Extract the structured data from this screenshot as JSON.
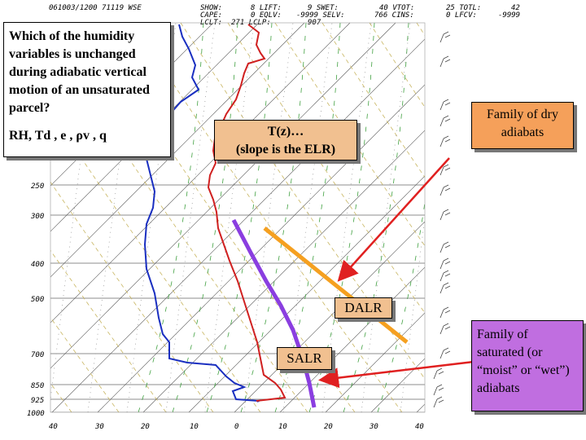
{
  "header": {
    "station": "061003/1200 71119 WSE",
    "col1": [
      "SHOW:",
      "CAPE:",
      "LCLT:"
    ],
    "col2": [
      "8 LIFT:",
      "0 EQLV:",
      "271 LCLP:"
    ],
    "col3": [
      "9 SWET:",
      "-9999 SELV:",
      "907"
    ],
    "col4": [
      "40 VTOT:",
      "766 CINS:"
    ],
    "col5": [
      "25 TOTL:",
      "0 LFCV:"
    ],
    "col6": [
      "42",
      "-9999"
    ]
  },
  "pressure_labels": [
    "250",
    "300",
    "400",
    "500",
    "700",
    "850",
    "925",
    "1000"
  ],
  "temperature_labels": [
    "40",
    "30",
    "20",
    "10",
    "0",
    "10",
    "20",
    "30",
    "40"
  ],
  "question": {
    "text": "Which of the humidity variables is unchanged during adiabatic vertical motion of an unsaturated parcel?",
    "answer": "RH, Td , e , ρv , q"
  },
  "tz_label": {
    "line1": "T(z)…",
    "line2": "(slope is the ELR)"
  },
  "dry_adiabats_label": "Family of dry adiabats",
  "dalr_label": "DALR",
  "salr_label": "SALR",
  "moist_adiabats_label": "Family of saturated (or “moist” or “wet”) adiabats",
  "colors": {
    "temperature_profile": "#d02020",
    "dewpoint_profile": "#1a2fc0",
    "salr_line": "#8a3ee0",
    "dalr_line": "#f5a020",
    "arrow_red": "#e02020",
    "dry_adiabat_grid": "#c8b560",
    "moist_adiabat_grid": "#40a040",
    "isotherm_grid": "#555555"
  }
}
